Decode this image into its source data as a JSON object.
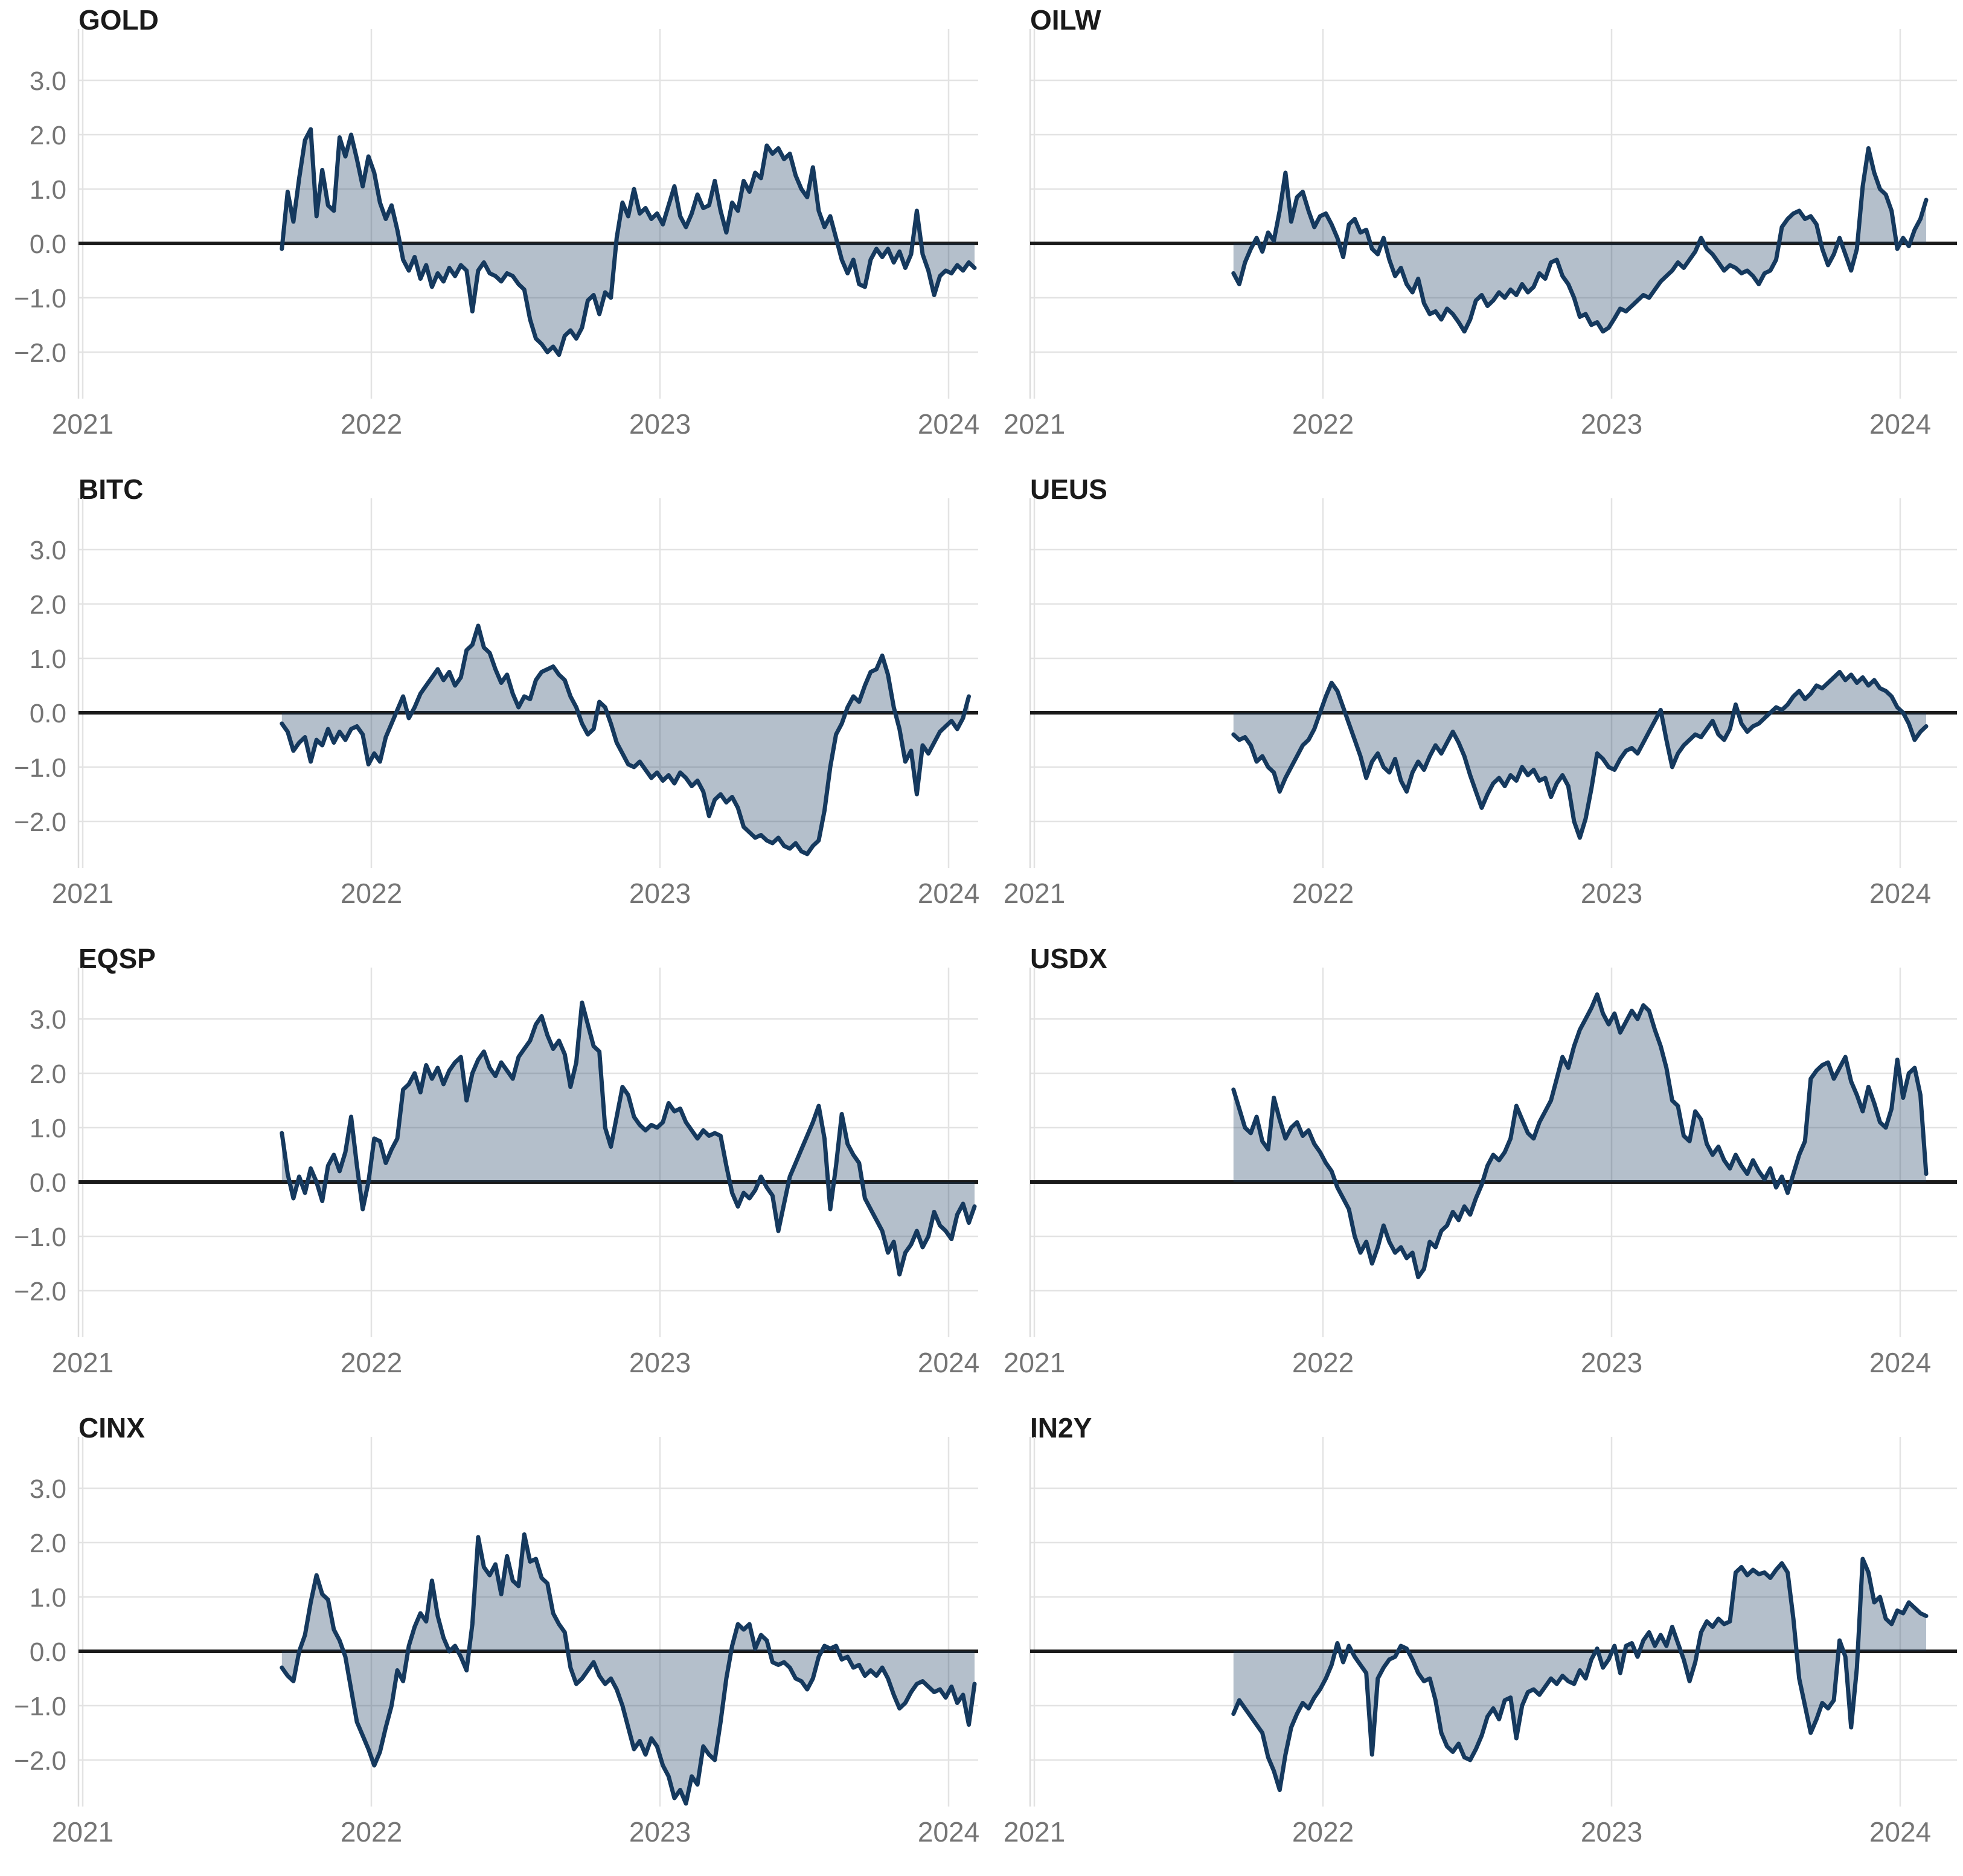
{
  "page": {
    "background": "#ffffff"
  },
  "style": {
    "line_color": "#15395e",
    "fill_color": "rgba(21,57,94,0.32)",
    "zero_line_color": "#1a1a1a",
    "grid_color": "#e3e3e3",
    "axis_line_color": "#dcdcdc",
    "axis_text_color": "#757575",
    "title_color": "#1a1a1a"
  },
  "chart_data": {
    "type": "area",
    "title": "",
    "xlabel": "",
    "ylabel": "",
    "layout": {
      "rows": 4,
      "cols": 2,
      "grid": true,
      "zero_line": true,
      "y_labels_on_left_column_only": true,
      "xlim": [
        2020.99,
        2024.1
      ],
      "ylim": [
        -2.86,
        3.94
      ]
    },
    "x_ticks": [
      2021,
      2022,
      2023,
      2024
    ],
    "x_tick_labels": [
      "2021",
      "2022",
      "2023",
      "2024"
    ],
    "y_ticks": [
      3.0,
      2.0,
      1.0,
      0.0,
      -1.0,
      -2.0
    ],
    "y_tick_labels": [
      "3.0",
      "2.0",
      "1.0",
      "0.0",
      "−1.0",
      "−2.0"
    ],
    "x_start": 2021.69,
    "x_step": 0.02,
    "panels": [
      {
        "code": "GOLD",
        "values": [
          -0.1,
          0.95,
          0.4,
          1.2,
          1.9,
          2.1,
          0.5,
          1.35,
          0.7,
          0.6,
          1.95,
          1.6,
          2.0,
          1.55,
          1.05,
          1.6,
          1.3,
          0.75,
          0.45,
          0.7,
          0.25,
          -0.3,
          -0.5,
          -0.25,
          -0.65,
          -0.4,
          -0.8,
          -0.55,
          -0.7,
          -0.45,
          -0.6,
          -0.4,
          -0.5,
          -1.25,
          -0.5,
          -0.35,
          -0.55,
          -0.6,
          -0.7,
          -0.55,
          -0.6,
          -0.75,
          -0.85,
          -1.4,
          -1.75,
          -1.85,
          -2.0,
          -1.9,
          -2.05,
          -1.7,
          -1.6,
          -1.75,
          -1.55,
          -1.05,
          -0.95,
          -1.3,
          -0.9,
          -1.0,
          0.1,
          0.75,
          0.5,
          1.0,
          0.55,
          0.65,
          0.45,
          0.55,
          0.35,
          0.7,
          1.05,
          0.5,
          0.3,
          0.55,
          0.9,
          0.65,
          0.7,
          1.15,
          0.6,
          0.2,
          0.75,
          0.6,
          1.15,
          0.95,
          1.3,
          1.2,
          1.8,
          1.65,
          1.75,
          1.55,
          1.65,
          1.25,
          1.0,
          0.85,
          1.4,
          0.6,
          0.3,
          0.5,
          0.1,
          -0.3,
          -0.55,
          -0.3,
          -0.75,
          -0.8,
          -0.3,
          -0.1,
          -0.25,
          -0.1,
          -0.35,
          -0.15,
          -0.45,
          -0.2,
          0.6,
          -0.2,
          -0.5,
          -0.95,
          -0.6,
          -0.5,
          -0.55,
          -0.4,
          -0.5,
          -0.35,
          -0.45
        ]
      },
      {
        "code": "OILW",
        "values": [
          -0.55,
          -0.75,
          -0.35,
          -0.1,
          0.1,
          -0.15,
          0.2,
          0.05,
          0.6,
          1.3,
          0.4,
          0.85,
          0.95,
          0.6,
          0.3,
          0.5,
          0.55,
          0.35,
          0.1,
          -0.25,
          0.35,
          0.45,
          0.2,
          0.25,
          -0.1,
          -0.2,
          0.1,
          -0.3,
          -0.6,
          -0.45,
          -0.75,
          -0.9,
          -0.65,
          -1.1,
          -1.3,
          -1.25,
          -1.4,
          -1.2,
          -1.3,
          -1.45,
          -1.62,
          -1.4,
          -1.05,
          -0.95,
          -1.15,
          -1.05,
          -0.9,
          -1.0,
          -0.85,
          -0.95,
          -0.75,
          -0.9,
          -0.8,
          -0.55,
          -0.65,
          -0.35,
          -0.3,
          -0.6,
          -0.75,
          -1.0,
          -1.35,
          -1.3,
          -1.5,
          -1.45,
          -1.62,
          -1.55,
          -1.38,
          -1.2,
          -1.25,
          -1.15,
          -1.05,
          -0.95,
          -1.0,
          -0.85,
          -0.7,
          -0.6,
          -0.5,
          -0.35,
          -0.45,
          -0.3,
          -0.15,
          0.1,
          -0.1,
          -0.2,
          -0.35,
          -0.5,
          -0.4,
          -0.45,
          -0.55,
          -0.5,
          -0.6,
          -0.75,
          -0.55,
          -0.5,
          -0.3,
          0.3,
          0.45,
          0.55,
          0.6,
          0.45,
          0.5,
          0.35,
          -0.1,
          -0.4,
          -0.2,
          0.1,
          -0.2,
          -0.5,
          -0.1,
          1.05,
          1.75,
          1.3,
          1.0,
          0.9,
          0.6,
          -0.1,
          0.1,
          -0.05,
          0.25,
          0.45,
          0.8
        ]
      },
      {
        "code": "BITC",
        "values": [
          -0.2,
          -0.35,
          -0.7,
          -0.55,
          -0.45,
          -0.9,
          -0.5,
          -0.6,
          -0.3,
          -0.55,
          -0.35,
          -0.5,
          -0.3,
          -0.25,
          -0.4,
          -0.95,
          -0.75,
          -0.9,
          -0.45,
          -0.2,
          0.05,
          0.3,
          -0.1,
          0.1,
          0.35,
          0.5,
          0.65,
          0.8,
          0.6,
          0.75,
          0.5,
          0.65,
          1.15,
          1.25,
          1.6,
          1.2,
          1.1,
          0.8,
          0.55,
          0.7,
          0.35,
          0.1,
          0.3,
          0.25,
          0.6,
          0.75,
          0.8,
          0.85,
          0.7,
          0.6,
          0.3,
          0.1,
          -0.2,
          -0.4,
          -0.3,
          0.2,
          0.1,
          -0.2,
          -0.55,
          -0.75,
          -0.95,
          -1.0,
          -0.9,
          -1.05,
          -1.2,
          -1.1,
          -1.25,
          -1.15,
          -1.3,
          -1.1,
          -1.2,
          -1.35,
          -1.25,
          -1.45,
          -1.9,
          -1.6,
          -1.5,
          -1.65,
          -1.55,
          -1.75,
          -2.1,
          -2.2,
          -2.3,
          -2.25,
          -2.35,
          -2.4,
          -2.3,
          -2.45,
          -2.5,
          -2.4,
          -2.55,
          -2.6,
          -2.45,
          -2.35,
          -1.8,
          -1.0,
          -0.4,
          -0.2,
          0.1,
          0.3,
          0.2,
          0.5,
          0.75,
          0.8,
          1.05,
          0.7,
          0.1,
          -0.3,
          -0.9,
          -0.7,
          -1.5,
          -0.6,
          -0.75,
          -0.55,
          -0.35,
          -0.25,
          -0.15,
          -0.3,
          -0.1,
          0.3
        ]
      },
      {
        "code": "UEUS",
        "values": [
          -0.4,
          -0.5,
          -0.45,
          -0.6,
          -0.9,
          -0.8,
          -1.0,
          -1.1,
          -1.45,
          -1.2,
          -1.0,
          -0.8,
          -0.6,
          -0.5,
          -0.3,
          0.0,
          0.3,
          0.55,
          0.4,
          0.1,
          -0.2,
          -0.5,
          -0.8,
          -1.2,
          -0.9,
          -0.75,
          -1.0,
          -1.1,
          -0.85,
          -1.25,
          -1.45,
          -1.1,
          -0.9,
          -1.05,
          -0.8,
          -0.6,
          -0.75,
          -0.55,
          -0.35,
          -0.55,
          -0.8,
          -1.15,
          -1.45,
          -1.75,
          -1.5,
          -1.3,
          -1.2,
          -1.35,
          -1.15,
          -1.25,
          -1.0,
          -1.15,
          -1.05,
          -1.25,
          -1.2,
          -1.55,
          -1.3,
          -1.15,
          -1.35,
          -2.0,
          -2.3,
          -1.95,
          -1.4,
          -0.75,
          -0.85,
          -1.0,
          -1.05,
          -0.85,
          -0.7,
          -0.65,
          -0.75,
          -0.55,
          -0.35,
          -0.15,
          0.05,
          -0.5,
          -1.0,
          -0.75,
          -0.6,
          -0.5,
          -0.4,
          -0.45,
          -0.3,
          -0.15,
          -0.4,
          -0.5,
          -0.3,
          0.15,
          -0.2,
          -0.35,
          -0.25,
          -0.2,
          -0.1,
          0.0,
          0.1,
          0.05,
          0.15,
          0.3,
          0.4,
          0.25,
          0.35,
          0.5,
          0.45,
          0.55,
          0.65,
          0.75,
          0.6,
          0.7,
          0.55,
          0.65,
          0.5,
          0.6,
          0.45,
          0.4,
          0.3,
          0.1,
          0.0,
          -0.2,
          -0.5,
          -0.35,
          -0.25
        ]
      },
      {
        "code": "EQSP",
        "values": [
          0.9,
          0.15,
          -0.3,
          0.1,
          -0.2,
          0.25,
          0.0,
          -0.35,
          0.3,
          0.5,
          0.2,
          0.55,
          1.2,
          0.3,
          -0.5,
          0.0,
          0.8,
          0.75,
          0.35,
          0.6,
          0.8,
          1.7,
          1.8,
          2.0,
          1.65,
          2.15,
          1.9,
          2.1,
          1.8,
          2.05,
          2.2,
          2.3,
          1.5,
          2.0,
          2.25,
          2.4,
          2.1,
          1.95,
          2.2,
          2.05,
          1.9,
          2.3,
          2.45,
          2.6,
          2.9,
          3.05,
          2.7,
          2.45,
          2.6,
          2.35,
          1.75,
          2.2,
          3.3,
          2.9,
          2.5,
          2.4,
          1.0,
          0.65,
          1.2,
          1.75,
          1.6,
          1.2,
          1.05,
          0.95,
          1.05,
          1.0,
          1.1,
          1.45,
          1.3,
          1.35,
          1.1,
          0.95,
          0.8,
          0.95,
          0.85,
          0.9,
          0.85,
          0.3,
          -0.2,
          -0.45,
          -0.2,
          -0.3,
          -0.15,
          0.1,
          -0.1,
          -0.25,
          -0.9,
          -0.4,
          0.1,
          0.35,
          0.6,
          0.85,
          1.1,
          1.4,
          0.8,
          -0.5,
          0.3,
          1.25,
          0.7,
          0.5,
          0.35,
          -0.3,
          -0.5,
          -0.7,
          -0.9,
          -1.3,
          -1.1,
          -1.7,
          -1.3,
          -1.15,
          -0.9,
          -1.2,
          -1.0,
          -0.55,
          -0.8,
          -0.9,
          -1.05,
          -0.6,
          -0.4,
          -0.75,
          -0.45
        ]
      },
      {
        "code": "USDX",
        "values": [
          1.7,
          1.35,
          1.0,
          0.9,
          1.2,
          0.75,
          0.6,
          1.55,
          1.15,
          0.8,
          1.0,
          1.1,
          0.85,
          0.95,
          0.7,
          0.55,
          0.35,
          0.2,
          -0.1,
          -0.3,
          -0.5,
          -1.0,
          -1.3,
          -1.1,
          -1.5,
          -1.2,
          -0.8,
          -1.1,
          -1.3,
          -1.2,
          -1.4,
          -1.3,
          -1.75,
          -1.6,
          -1.1,
          -1.2,
          -0.9,
          -0.8,
          -0.55,
          -0.7,
          -0.45,
          -0.6,
          -0.3,
          -0.05,
          0.3,
          0.5,
          0.4,
          0.55,
          0.8,
          1.4,
          1.15,
          0.9,
          0.8,
          1.1,
          1.3,
          1.5,
          1.9,
          2.3,
          2.1,
          2.5,
          2.8,
          3.0,
          3.2,
          3.45,
          3.1,
          2.9,
          3.1,
          2.75,
          2.95,
          3.15,
          3.0,
          3.25,
          3.15,
          2.8,
          2.5,
          2.1,
          1.5,
          1.4,
          0.85,
          0.75,
          1.3,
          1.15,
          0.7,
          0.5,
          0.65,
          0.4,
          0.25,
          0.5,
          0.3,
          0.15,
          0.4,
          0.2,
          0.05,
          0.25,
          -0.1,
          0.1,
          -0.2,
          0.15,
          0.5,
          0.75,
          1.9,
          2.05,
          2.15,
          2.2,
          1.9,
          2.1,
          2.3,
          1.85,
          1.6,
          1.3,
          1.75,
          1.45,
          1.1,
          1.0,
          1.35,
          2.25,
          1.55,
          2.0,
          2.1,
          1.6,
          0.15
        ]
      },
      {
        "code": "CINX",
        "values": [
          -0.3,
          -0.45,
          -0.55,
          0.0,
          0.3,
          0.9,
          1.4,
          1.05,
          0.95,
          0.4,
          0.2,
          -0.1,
          -0.7,
          -1.3,
          -1.55,
          -1.8,
          -2.1,
          -1.85,
          -1.4,
          -1.0,
          -0.35,
          -0.55,
          0.1,
          0.45,
          0.7,
          0.55,
          1.3,
          0.65,
          0.25,
          0.0,
          0.1,
          -0.1,
          -0.35,
          0.5,
          2.1,
          1.55,
          1.4,
          1.6,
          1.05,
          1.75,
          1.3,
          1.2,
          2.15,
          1.65,
          1.7,
          1.35,
          1.25,
          0.7,
          0.5,
          0.35,
          -0.3,
          -0.6,
          -0.5,
          -0.35,
          -0.2,
          -0.45,
          -0.6,
          -0.5,
          -0.7,
          -1.0,
          -1.4,
          -1.8,
          -1.65,
          -1.9,
          -1.6,
          -1.75,
          -2.1,
          -2.3,
          -2.7,
          -2.55,
          -2.8,
          -2.3,
          -2.45,
          -1.75,
          -1.9,
          -2.0,
          -1.3,
          -0.5,
          0.1,
          0.5,
          0.4,
          0.5,
          0.05,
          0.3,
          0.2,
          -0.2,
          -0.25,
          -0.2,
          -0.3,
          -0.5,
          -0.55,
          -0.7,
          -0.5,
          -0.1,
          0.1,
          0.05,
          0.1,
          -0.15,
          -0.1,
          -0.3,
          -0.25,
          -0.45,
          -0.35,
          -0.45,
          -0.3,
          -0.5,
          -0.8,
          -1.05,
          -0.95,
          -0.75,
          -0.6,
          -0.55,
          -0.65,
          -0.75,
          -0.7,
          -0.85,
          -0.65,
          -0.95,
          -0.8,
          -1.35,
          -0.6
        ]
      },
      {
        "code": "IN2Y",
        "values": [
          -1.15,
          -0.9,
          -1.05,
          -1.2,
          -1.35,
          -1.5,
          -1.95,
          -2.2,
          -2.55,
          -1.9,
          -1.4,
          -1.15,
          -0.95,
          -1.05,
          -0.85,
          -0.7,
          -0.5,
          -0.25,
          0.15,
          -0.2,
          0.1,
          -0.1,
          -0.25,
          -0.4,
          -1.9,
          -0.5,
          -0.3,
          -0.15,
          -0.1,
          0.1,
          0.05,
          -0.15,
          -0.4,
          -0.55,
          -0.5,
          -0.9,
          -1.5,
          -1.75,
          -1.85,
          -1.7,
          -1.95,
          -2.0,
          -1.8,
          -1.55,
          -1.2,
          -1.05,
          -1.25,
          -0.9,
          -0.85,
          -1.6,
          -1.0,
          -0.75,
          -0.7,
          -0.8,
          -0.65,
          -0.5,
          -0.6,
          -0.45,
          -0.55,
          -0.6,
          -0.35,
          -0.5,
          -0.15,
          0.05,
          -0.3,
          -0.15,
          0.1,
          -0.4,
          0.1,
          0.15,
          -0.1,
          0.2,
          0.35,
          0.1,
          0.3,
          0.1,
          0.45,
          0.15,
          -0.15,
          -0.55,
          -0.2,
          0.35,
          0.55,
          0.45,
          0.6,
          0.5,
          0.55,
          1.45,
          1.55,
          1.4,
          1.5,
          1.42,
          1.45,
          1.35,
          1.5,
          1.62,
          1.45,
          0.6,
          -0.5,
          -1.0,
          -1.5,
          -1.25,
          -0.95,
          -1.05,
          -0.9,
          0.2,
          -0.1,
          -1.4,
          -0.3,
          1.7,
          1.45,
          0.9,
          1.0,
          0.6,
          0.5,
          0.75,
          0.7,
          0.9,
          0.8,
          0.7,
          0.65
        ]
      }
    ]
  }
}
